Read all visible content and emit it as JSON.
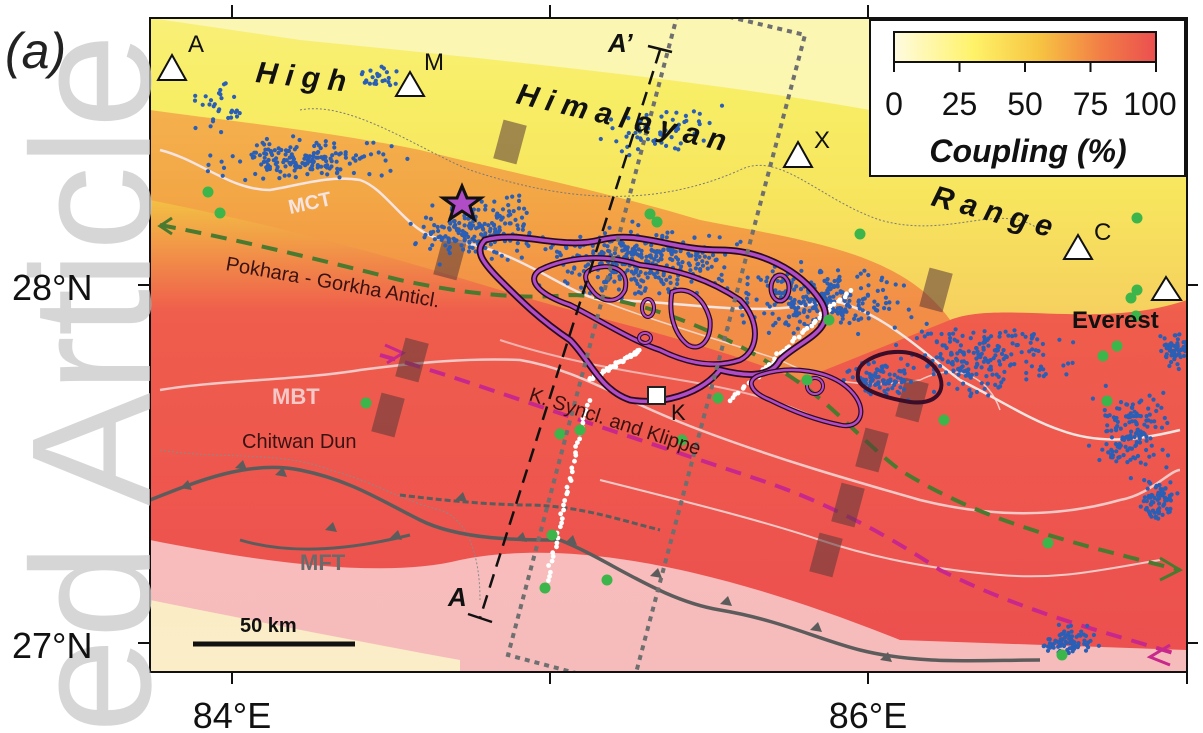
{
  "panel_label": "(a)",
  "watermark": "ed Article",
  "axes": {
    "lat_ticks": [
      "28°N",
      "27°N"
    ],
    "lon_ticks": [
      "84°E",
      "86°E"
    ]
  },
  "colorbar": {
    "ticks": [
      "0",
      "25",
      "50",
      "75",
      "100"
    ],
    "title": "Coupling (%)",
    "gradient": [
      "#fffbe0",
      "#fff36a",
      "#f7c542",
      "#f27b46",
      "#eb4f4f"
    ]
  },
  "range_text": {
    "high": "High",
    "himalayan": "Himalayan",
    "range": "Range"
  },
  "peaks": [
    {
      "label": "A"
    },
    {
      "label": "M"
    },
    {
      "label": "X"
    },
    {
      "label": "C"
    },
    {
      "label": "Everest"
    }
  ],
  "structures": {
    "mct": "MCT",
    "mbt": "MBT",
    "mft": "MFT",
    "pokhara": "Pokhara - Gorkha Anticl.",
    "chitwan": "Chitwan Dun",
    "ksyncl": "K. Syncl.  and Klippe",
    "kathmandu": "K"
  },
  "profile": {
    "start": "A",
    "end": "A’"
  },
  "scale_bar": "50 km",
  "colors": {
    "seismicity": "#2a5fb5",
    "gps_stations": "#3cb54a",
    "coupling_contours": "#8e3579",
    "mainshock_star": "#b04cc6",
    "anticline": "#4a7a2f",
    "syncline": "#c8288c"
  }
}
